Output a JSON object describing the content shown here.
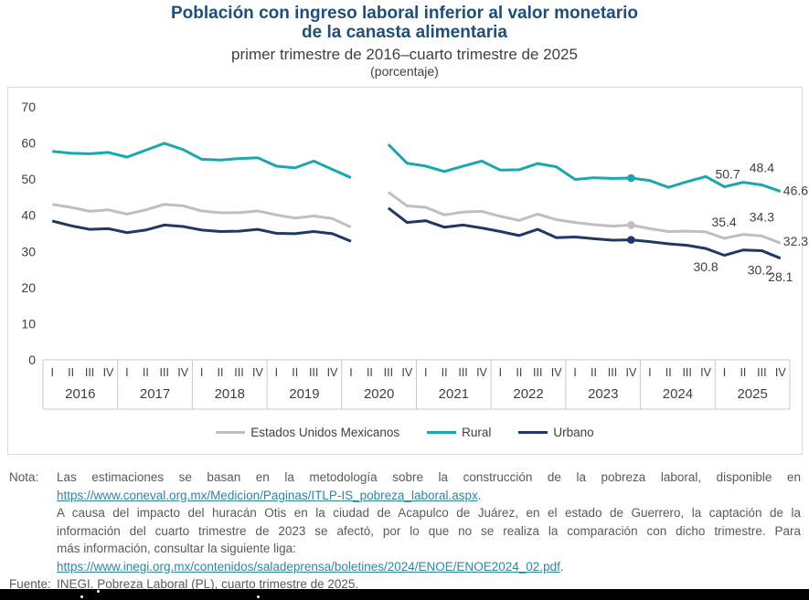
{
  "title_line1": "Población con ingreso laboral inferior al valor monetario",
  "title_line2": "de la canasta alimentaria",
  "subtitle": "primer trimestre de 2016–cuarto trimestre de 2025",
  "unit_label": "(porcentaje)",
  "colors": {
    "title": "#1F4E79",
    "link": "#31859C",
    "note_text": "#595959",
    "axis_text": "#404040",
    "grid_border": "#C9C9C9",
    "eum_gray": "#BFBFBF",
    "rural_teal": "#1AA7B0",
    "urbano_navy": "#1F3864"
  },
  "chart_data": {
    "type": "line",
    "title": "Población con ingreso laboral inferior al valor monetario de la canasta alimentaria",
    "subtitle": "primer trimestre de 2016–cuarto trimestre de 2025",
    "unit": "porcentaje",
    "ylim": [
      0,
      70
    ],
    "yticks": [
      0,
      10,
      20,
      30,
      40,
      50,
      60,
      70
    ],
    "grid": false,
    "legend_position": "bottom",
    "years": [
      "2016",
      "2017",
      "2018",
      "2019",
      "2020",
      "2021",
      "2022",
      "2023",
      "2024",
      "2025"
    ],
    "quarter_labels": [
      "I",
      "II",
      "III",
      "IV"
    ],
    "x_note": "40 trimestres; sin dato en 2020-II",
    "highlight_marker_index": 31,
    "series": [
      {
        "name": "Estados Unidos Mexicanos",
        "color": "#BFBFBF",
        "values": [
          43.0,
          42.2,
          41.1,
          41.5,
          40.3,
          41.5,
          43.0,
          42.6,
          41.2,
          40.7,
          40.7,
          41.2,
          40.1,
          39.2,
          39.8,
          39.1,
          36.7,
          null,
          46.4,
          42.6,
          42.2,
          40.1,
          40.9,
          41.1,
          39.7,
          38.6,
          40.3,
          38.8,
          38.0,
          37.4,
          37.0,
          37.3,
          36.3,
          35.5,
          35.6,
          35.4,
          33.6,
          34.7,
          34.3,
          32.3
        ]
      },
      {
        "name": "Rural",
        "color": "#1AA7B0",
        "values": [
          57.7,
          57.2,
          57.0,
          57.4,
          56.1,
          58.0,
          59.9,
          58.2,
          55.5,
          55.3,
          55.7,
          55.9,
          53.6,
          53.1,
          55.0,
          52.7,
          50.4,
          null,
          59.6,
          54.4,
          53.6,
          52.1,
          53.6,
          55.0,
          52.5,
          52.6,
          54.3,
          53.4,
          49.9,
          50.4,
          50.2,
          50.3,
          49.6,
          47.7,
          49.3,
          50.7,
          47.9,
          49.1,
          48.4,
          46.6
        ]
      },
      {
        "name": "Urbano",
        "color": "#1F3864",
        "values": [
          38.4,
          37.1,
          36.1,
          36.3,
          35.2,
          35.9,
          37.3,
          36.9,
          35.9,
          35.5,
          35.6,
          36.1,
          35.0,
          34.9,
          35.5,
          34.9,
          32.8,
          null,
          42.0,
          38.0,
          38.5,
          36.7,
          37.3,
          36.5,
          35.5,
          34.4,
          36.1,
          33.8,
          34.0,
          33.5,
          33.1,
          33.2,
          32.7,
          32.1,
          31.7,
          30.8,
          28.9,
          30.4,
          30.2,
          28.1
        ]
      }
    ],
    "point_labels": [
      {
        "series": "Rural",
        "index": 35,
        "text": "50.7"
      },
      {
        "series": "Rural",
        "index": 38,
        "text": "48.4"
      },
      {
        "series": "Rural",
        "index": 39,
        "text": "46.6"
      },
      {
        "series": "Estados Unidos Mexicanos",
        "index": 35,
        "text": "35.4"
      },
      {
        "series": "Estados Unidos Mexicanos",
        "index": 38,
        "text": "34.3"
      },
      {
        "series": "Estados Unidos Mexicanos",
        "index": 39,
        "text": "32.3"
      },
      {
        "series": "Urbano",
        "index": 35,
        "text": "30.8"
      },
      {
        "series": "Urbano",
        "index": 38,
        "text": "30.2"
      },
      {
        "series": "Urbano",
        "index": 39,
        "text": "28.1"
      }
    ]
  },
  "note": {
    "label": "Nota:",
    "lines": [
      {
        "text": "Las estimaciones se basan en la metodología sobre la construcción de la pobreza laboral, disponible en",
        "justify": true
      },
      {
        "link": "https://www.coneval.org.mx/Medicion/Paginas/ITLP-IS_pobreza_laboral.aspx",
        "suffix": "."
      },
      {
        "text": "A causa del impacto del huracán Otis en la ciudad de Acapulco de Juárez, en el estado de Guerrero, la captación de la",
        "justify": true
      },
      {
        "text": "información del cuarto trimestre de 2023 se afectó, por lo que no se realiza la comparación con dicho trimestre. Para",
        "justify": true
      },
      {
        "text": "más información, consultar la siguiente liga:"
      },
      {
        "link": "https://www.inegi.org.mx/contenidos/saladeprensa/boletines/2024/ENOE/ENOE2024_02.pdf",
        "suffix": "."
      }
    ]
  },
  "fuente": {
    "label": "Fuente:",
    "parts": [
      {
        "text": "INEGI",
        "misspell": true
      },
      {
        "text": ". Pobreza Laboral ("
      },
      {
        "text": "PL",
        "misspell": true
      },
      {
        "text": "), cuarto trimestre de 2025."
      }
    ]
  }
}
